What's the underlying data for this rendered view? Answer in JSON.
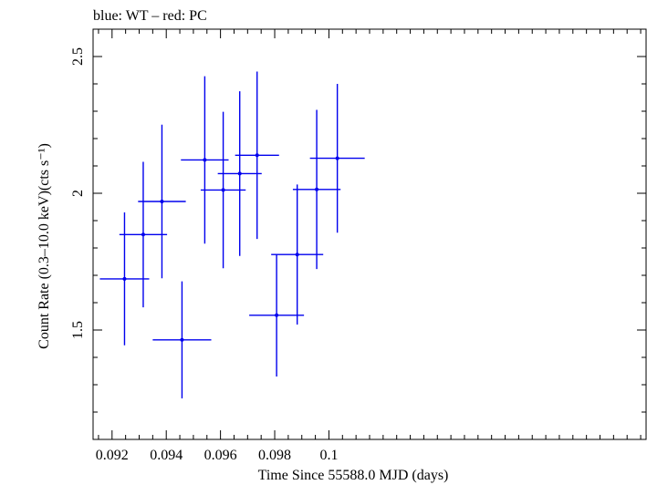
{
  "chart_data": {
    "type": "scatter",
    "title": "blue: WT – red: PC",
    "xlabel": "Time Since 55588.0 MJD (days)",
    "ylabel": "Count Rate (0.3–10.0 keV)(cts s⁻¹)",
    "xlim": [
      0.0913,
      0.1117
    ],
    "ylim": [
      1.1,
      2.6
    ],
    "x_ticks": [
      0.092,
      0.094,
      0.096,
      0.098,
      0.1
    ],
    "x_tick_labels": [
      "0.092",
      "0.094",
      "0.096",
      "0.098",
      "0.1"
    ],
    "y_ticks": [
      1.5,
      2,
      2.5
    ],
    "y_tick_labels": [
      "1.5",
      "2",
      "2.5"
    ],
    "series": [
      {
        "name": "WT",
        "color": "#0000ee",
        "points": [
          {
            "x": 0.09246,
            "xerr": 0.00091,
            "y": 1.687,
            "yerr_low": 0.243,
            "yerr_high": 0.243
          },
          {
            "x": 0.09315,
            "xerr": 0.00088,
            "y": 1.849,
            "yerr_low": 0.266,
            "yerr_high": 0.266
          },
          {
            "x": 0.09384,
            "xerr": 0.00088,
            "y": 1.97,
            "yerr_low": 0.281,
            "yerr_high": 0.281
          },
          {
            "x": 0.09458,
            "xerr": 0.00108,
            "y": 1.464,
            "yerr_low": 0.214,
            "yerr_high": 0.214
          },
          {
            "x": 0.09542,
            "xerr": 0.00088,
            "y": 2.122,
            "yerr_low": 0.306,
            "yerr_high": 0.306
          },
          {
            "x": 0.0961,
            "xerr": 0.00083,
            "y": 2.012,
            "yerr_low": 0.286,
            "yerr_high": 0.286
          },
          {
            "x": 0.09671,
            "xerr": 0.00081,
            "y": 2.072,
            "yerr_low": 0.301,
            "yerr_high": 0.301
          },
          {
            "x": 0.09735,
            "xerr": 0.00081,
            "y": 2.139,
            "yerr_low": 0.306,
            "yerr_high": 0.306
          },
          {
            "x": 0.09807,
            "xerr": 0.00101,
            "y": 1.554,
            "yerr_low": 0.224,
            "yerr_high": 0.224
          },
          {
            "x": 0.09883,
            "xerr": 0.00096,
            "y": 1.776,
            "yerr_low": 0.256,
            "yerr_high": 0.256
          },
          {
            "x": 0.09955,
            "xerr": 0.00088,
            "y": 2.014,
            "yerr_low": 0.291,
            "yerr_high": 0.291
          },
          {
            "x": 0.10031,
            "xerr": 0.00101,
            "y": 2.128,
            "yerr_low": 0.272,
            "yerr_high": 0.272
          }
        ]
      }
    ]
  }
}
